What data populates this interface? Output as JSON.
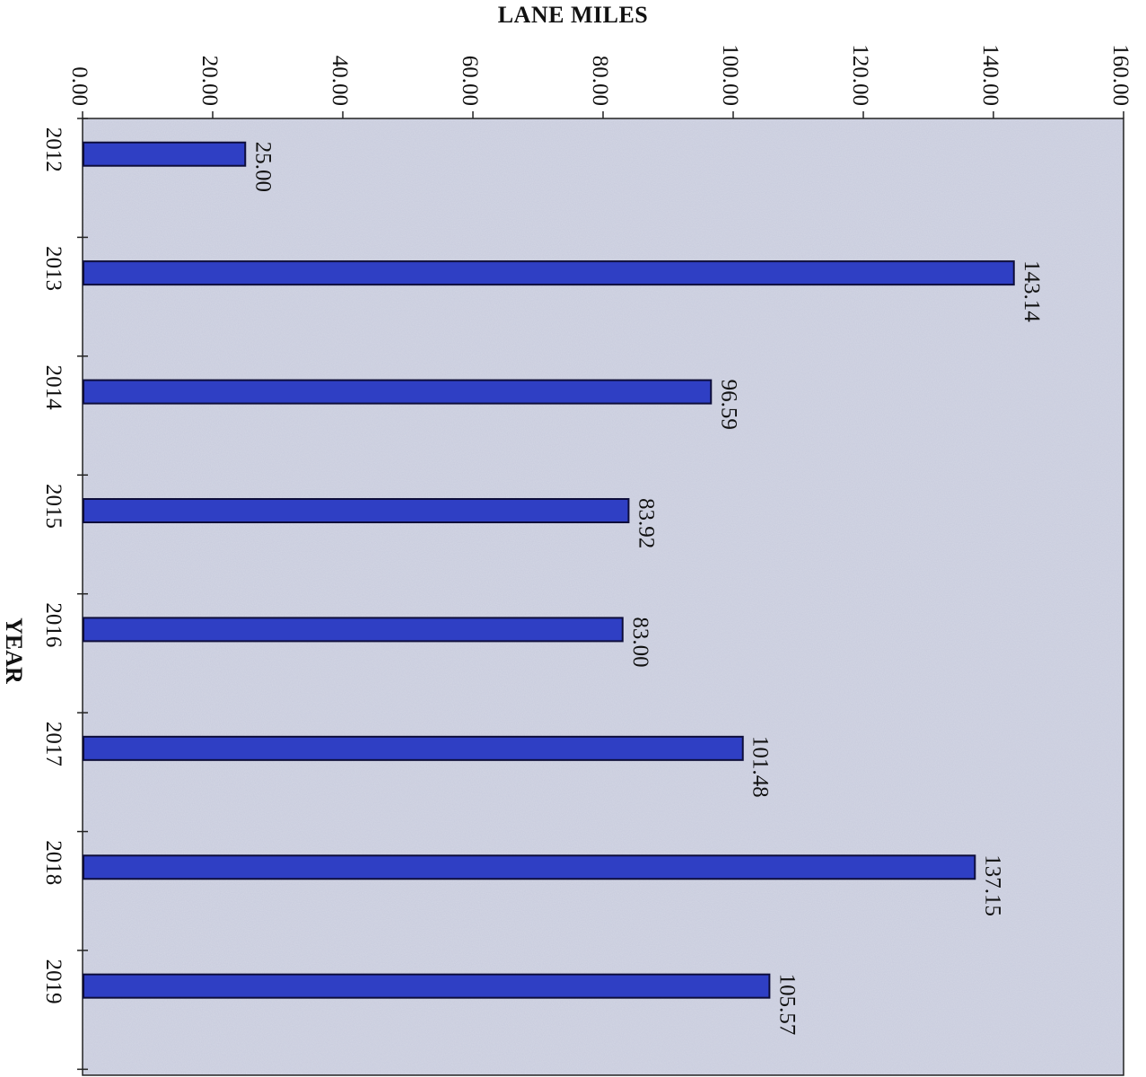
{
  "chart_data": {
    "type": "bar",
    "orientation": "horizontal",
    "title": "",
    "xlabel": "LANE MILES",
    "ylabel": "YEAR",
    "xlim": [
      0,
      160
    ],
    "x_ticks": [
      "0.00",
      "20.00",
      "40.00",
      "60.00",
      "80.00",
      "100.00",
      "120.00",
      "140.00",
      "160.00"
    ],
    "categories": [
      "2012",
      "2013",
      "2014",
      "2015",
      "2016",
      "2017",
      "2018",
      "2019"
    ],
    "values": [
      25.0,
      143.14,
      96.59,
      83.92,
      83.0,
      101.48,
      137.15,
      105.57
    ],
    "data_labels": [
      "25.00",
      "143.14",
      "96.59",
      "83.92",
      "83.00",
      "101.48",
      "137.15",
      "105.57"
    ],
    "grid": false,
    "legend": "none",
    "colors": {
      "bar": "#2f3fc4",
      "bar_edge": "#0d0d3a",
      "plot_bg": "#d3d6e4",
      "axis": "#222222",
      "text": "#111111"
    }
  }
}
